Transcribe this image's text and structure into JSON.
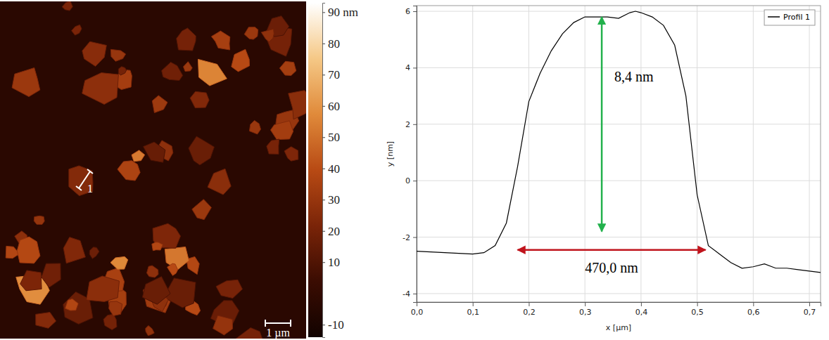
{
  "chart_data": [
    {
      "type": "heatmap",
      "colorbar_range": [
        -14,
        93
      ],
      "colorbar_ticks": [
        {
          "value": 90,
          "label": "90 nm"
        },
        80,
        70,
        60,
        50,
        40,
        30,
        20,
        10,
        -10
      ],
      "annotations": [
        {
          "text": "1 µm"
        },
        {
          "text": "1"
        }
      ]
    },
    {
      "type": "line",
      "x_label": "x [µm]",
      "y_label": "y [nm]",
      "x": [
        0.0,
        0.05,
        0.1,
        0.12,
        0.14,
        0.16,
        0.18,
        0.2,
        0.22,
        0.24,
        0.26,
        0.28,
        0.3,
        0.32,
        0.34,
        0.36,
        0.38,
        0.39,
        0.4,
        0.42,
        0.44,
        0.46,
        0.48,
        0.5,
        0.52,
        0.54,
        0.56,
        0.58,
        0.6,
        0.62,
        0.64,
        0.66,
        0.68,
        0.7,
        0.72
      ],
      "series": [
        {
          "name": "Profil 1",
          "color": "#000000",
          "values": [
            -2.5,
            -2.55,
            -2.6,
            -2.55,
            -2.3,
            -1.5,
            0.5,
            2.8,
            3.8,
            4.6,
            5.2,
            5.6,
            5.8,
            5.8,
            5.8,
            5.75,
            5.95,
            6.0,
            5.95,
            5.8,
            5.5,
            4.8,
            3.0,
            -0.5,
            -2.3,
            -2.6,
            -2.9,
            -3.1,
            -3.05,
            -2.95,
            -3.1,
            -3.1,
            -3.15,
            -3.2,
            -3.25
          ]
        }
      ],
      "xlim": [
        0,
        0.72
      ],
      "xticks": [
        {
          "value": 0,
          "label": "0,0"
        },
        {
          "value": 0.1,
          "label": "0,1"
        },
        {
          "value": 0.2,
          "label": "0,2"
        },
        {
          "value": 0.3,
          "label": "0,3"
        },
        {
          "value": 0.4,
          "label": "0,4"
        },
        {
          "value": 0.5,
          "label": "0,5"
        },
        {
          "value": 0.6,
          "label": "0,6"
        },
        {
          "value": 0.7,
          "label": "0,7"
        }
      ],
      "ylim": [
        -4.3,
        6.2
      ],
      "yticks": [
        -4,
        -2,
        0,
        2,
        4,
        6
      ],
      "grid": true,
      "legend": "upper right",
      "annotations": [
        {
          "text": "8,4 nm",
          "color": "#22b14c",
          "x": [
            0.33,
            0.33
          ],
          "y": [
            -1.8,
            5.8
          ]
        },
        {
          "text": "470,0 nm",
          "color": "#c0141c",
          "x": [
            0.18,
            0.515
          ],
          "y": [
            -2.45,
            -2.45
          ]
        }
      ]
    }
  ]
}
